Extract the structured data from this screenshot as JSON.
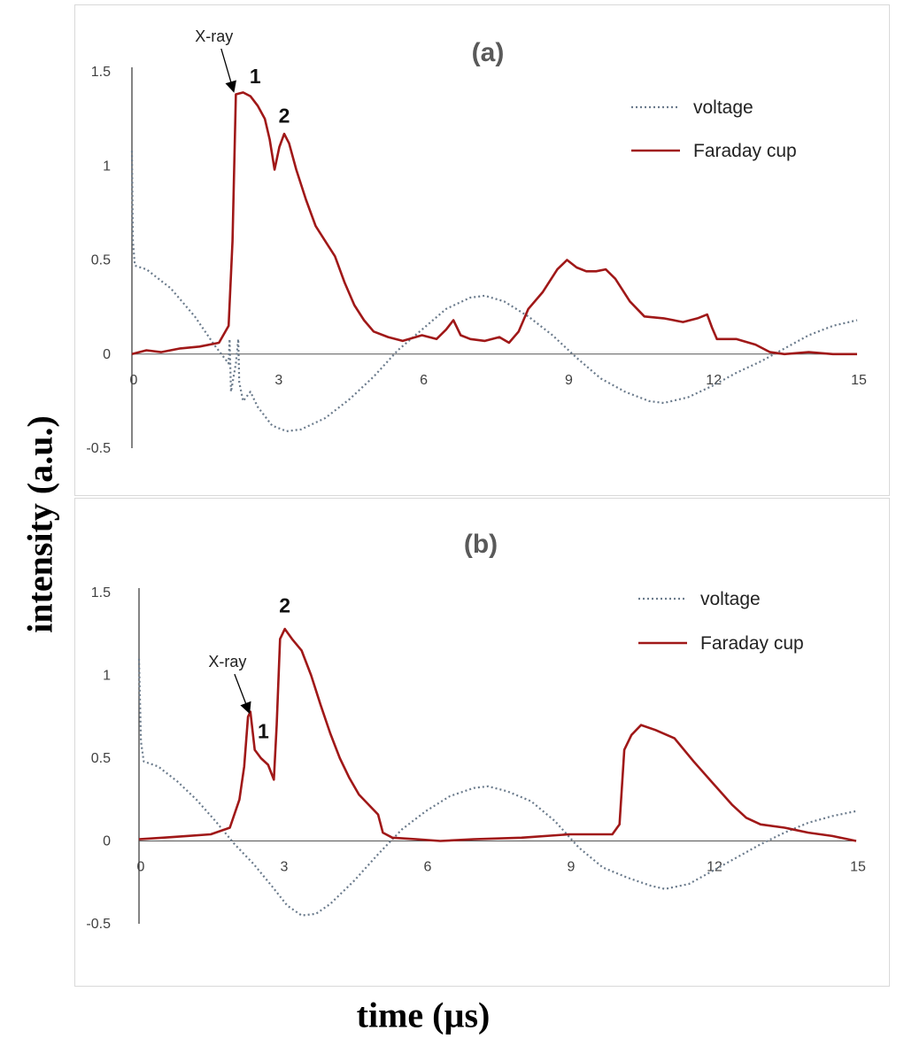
{
  "y_axis_label": "intensity (a.u.)",
  "x_axis_label": "time (µs)",
  "colors": {
    "voltage": "#6b7b8c",
    "faraday": "#a01818",
    "axis": "#333333",
    "text": "#404040",
    "title": "#595959"
  },
  "chart_data": [
    {
      "type": "line",
      "title": "(a)",
      "xlabel": "time (µs)",
      "ylabel": "intensity (a.u.)",
      "xlim": [
        0,
        15
      ],
      "ylim": [
        -0.5,
        1.5
      ],
      "xticks": [
        "0",
        "3",
        "6",
        "9",
        "12",
        "15"
      ],
      "yticks": [
        "-0.5",
        "0",
        "0.5",
        "1",
        "1.5"
      ],
      "legend_position": "top-right",
      "annotations": [
        {
          "text": "X-ray",
          "x": 1.7,
          "y": 1.66,
          "arrow_to": [
            2.1,
            1.4
          ]
        },
        {
          "text": "1",
          "x": 2.55,
          "y": 1.44
        },
        {
          "text": "2",
          "x": 3.15,
          "y": 1.23
        }
      ],
      "series": [
        {
          "name": "voltage",
          "style": "dotted",
          "points": [
            [
              0,
              1.08
            ],
            [
              0.02,
              0.6
            ],
            [
              0.06,
              0.47
            ],
            [
              0.3,
              0.45
            ],
            [
              0.8,
              0.35
            ],
            [
              1.3,
              0.2
            ],
            [
              1.7,
              0.05
            ],
            [
              2.0,
              -0.05
            ],
            [
              2.02,
              0.08
            ],
            [
              2.05,
              -0.2
            ],
            [
              2.15,
              -0.05
            ],
            [
              2.2,
              0.08
            ],
            [
              2.22,
              -0.15
            ],
            [
              2.3,
              -0.25
            ],
            [
              2.45,
              -0.2
            ],
            [
              2.6,
              -0.28
            ],
            [
              2.9,
              -0.38
            ],
            [
              3.2,
              -0.41
            ],
            [
              3.5,
              -0.4
            ],
            [
              4.0,
              -0.34
            ],
            [
              4.5,
              -0.24
            ],
            [
              5.0,
              -0.12
            ],
            [
              5.5,
              0.02
            ],
            [
              6.0,
              0.13
            ],
            [
              6.5,
              0.24
            ],
            [
              7.0,
              0.3
            ],
            [
              7.3,
              0.31
            ],
            [
              7.7,
              0.28
            ],
            [
              8.2,
              0.2
            ],
            [
              8.7,
              0.1
            ],
            [
              9.2,
              -0.02
            ],
            [
              9.7,
              -0.13
            ],
            [
              10.2,
              -0.2
            ],
            [
              10.7,
              -0.25
            ],
            [
              11.0,
              -0.26
            ],
            [
              11.5,
              -0.23
            ],
            [
              12.0,
              -0.17
            ],
            [
              12.5,
              -0.1
            ],
            [
              13.0,
              -0.04
            ],
            [
              13.5,
              0.03
            ],
            [
              14.0,
              0.1
            ],
            [
              14.5,
              0.15
            ],
            [
              15.0,
              0.18
            ]
          ]
        },
        {
          "name": "Faraday cup",
          "style": "solid",
          "points": [
            [
              0,
              0.0
            ],
            [
              0.3,
              0.02
            ],
            [
              0.6,
              0.01
            ],
            [
              1.0,
              0.03
            ],
            [
              1.4,
              0.04
            ],
            [
              1.8,
              0.06
            ],
            [
              2.0,
              0.15
            ],
            [
              2.08,
              0.6
            ],
            [
              2.15,
              1.38
            ],
            [
              2.3,
              1.39
            ],
            [
              2.45,
              1.37
            ],
            [
              2.6,
              1.32
            ],
            [
              2.75,
              1.25
            ],
            [
              2.85,
              1.14
            ],
            [
              2.95,
              0.98
            ],
            [
              3.05,
              1.1
            ],
            [
              3.15,
              1.17
            ],
            [
              3.25,
              1.12
            ],
            [
              3.4,
              0.98
            ],
            [
              3.6,
              0.82
            ],
            [
              3.8,
              0.68
            ],
            [
              4.0,
              0.6
            ],
            [
              4.2,
              0.52
            ],
            [
              4.4,
              0.38
            ],
            [
              4.6,
              0.26
            ],
            [
              4.8,
              0.18
            ],
            [
              5.0,
              0.12
            ],
            [
              5.3,
              0.09
            ],
            [
              5.6,
              0.07
            ],
            [
              6.0,
              0.1
            ],
            [
              6.3,
              0.08
            ],
            [
              6.5,
              0.13
            ],
            [
              6.65,
              0.18
            ],
            [
              6.8,
              0.1
            ],
            [
              7.0,
              0.08
            ],
            [
              7.3,
              0.07
            ],
            [
              7.6,
              0.09
            ],
            [
              7.8,
              0.06
            ],
            [
              8.0,
              0.12
            ],
            [
              8.2,
              0.24
            ],
            [
              8.5,
              0.33
            ],
            [
              8.8,
              0.45
            ],
            [
              9.0,
              0.5
            ],
            [
              9.2,
              0.46
            ],
            [
              9.4,
              0.44
            ],
            [
              9.6,
              0.44
            ],
            [
              9.8,
              0.45
            ],
            [
              10.0,
              0.4
            ],
            [
              10.3,
              0.28
            ],
            [
              10.6,
              0.2
            ],
            [
              11.0,
              0.19
            ],
            [
              11.4,
              0.17
            ],
            [
              11.7,
              0.19
            ],
            [
              11.9,
              0.21
            ],
            [
              12.0,
              0.14
            ],
            [
              12.1,
              0.08
            ],
            [
              12.5,
              0.08
            ],
            [
              12.9,
              0.05
            ],
            [
              13.2,
              0.01
            ],
            [
              13.5,
              0.0
            ],
            [
              14.0,
              0.01
            ],
            [
              14.5,
              0.0
            ],
            [
              15.0,
              0.0
            ]
          ]
        }
      ]
    },
    {
      "type": "line",
      "title": "(b)",
      "xlabel": "time (µs)",
      "ylabel": "intensity (a.u.)",
      "xlim": [
        0,
        15
      ],
      "ylim": [
        -0.5,
        1.5
      ],
      "xticks": [
        "0",
        "3",
        "6",
        "9",
        "12",
        "15"
      ],
      "yticks": [
        "-0.5",
        "0",
        "0.5",
        "1",
        "1.5"
      ],
      "legend_position": "top-right",
      "annotations": [
        {
          "text": "X-ray",
          "x": 1.85,
          "y": 1.05,
          "arrow_to": [
            2.3,
            0.78
          ]
        },
        {
          "text": "1",
          "x": 2.6,
          "y": 0.62
        },
        {
          "text": "2",
          "x": 3.05,
          "y": 1.38
        }
      ],
      "series": [
        {
          "name": "voltage",
          "style": "dotted",
          "points": [
            [
              0,
              1.1
            ],
            [
              0.04,
              0.6
            ],
            [
              0.1,
              0.48
            ],
            [
              0.4,
              0.45
            ],
            [
              0.8,
              0.36
            ],
            [
              1.2,
              0.25
            ],
            [
              1.6,
              0.12
            ],
            [
              2.0,
              -0.02
            ],
            [
              2.4,
              -0.14
            ],
            [
              2.8,
              -0.28
            ],
            [
              3.1,
              -0.39
            ],
            [
              3.4,
              -0.45
            ],
            [
              3.7,
              -0.44
            ],
            [
              4.0,
              -0.38
            ],
            [
              4.5,
              -0.24
            ],
            [
              5.0,
              -0.08
            ],
            [
              5.5,
              0.07
            ],
            [
              6.0,
              0.18
            ],
            [
              6.5,
              0.27
            ],
            [
              7.0,
              0.32
            ],
            [
              7.3,
              0.33
            ],
            [
              7.7,
              0.3
            ],
            [
              8.2,
              0.24
            ],
            [
              8.7,
              0.12
            ],
            [
              9.2,
              -0.04
            ],
            [
              9.7,
              -0.16
            ],
            [
              10.2,
              -0.22
            ],
            [
              10.7,
              -0.27
            ],
            [
              11.0,
              -0.29
            ],
            [
              11.5,
              -0.26
            ],
            [
              12.0,
              -0.18
            ],
            [
              12.5,
              -0.1
            ],
            [
              13.0,
              -0.02
            ],
            [
              13.5,
              0.05
            ],
            [
              14.0,
              0.11
            ],
            [
              14.5,
              0.15
            ],
            [
              15.0,
              0.18
            ]
          ]
        },
        {
          "name": "Faraday cup",
          "style": "solid",
          "points": [
            [
              0,
              0.01
            ],
            [
              0.5,
              0.02
            ],
            [
              1.0,
              0.03
            ],
            [
              1.5,
              0.04
            ],
            [
              1.9,
              0.08
            ],
            [
              2.1,
              0.25
            ],
            [
              2.2,
              0.45
            ],
            [
              2.28,
              0.75
            ],
            [
              2.33,
              0.78
            ],
            [
              2.42,
              0.55
            ],
            [
              2.55,
              0.5
            ],
            [
              2.7,
              0.46
            ],
            [
              2.82,
              0.37
            ],
            [
              2.88,
              0.7
            ],
            [
              2.95,
              1.22
            ],
            [
              3.05,
              1.28
            ],
            [
              3.2,
              1.22
            ],
            [
              3.4,
              1.15
            ],
            [
              3.6,
              1.0
            ],
            [
              3.8,
              0.82
            ],
            [
              4.0,
              0.65
            ],
            [
              4.2,
              0.5
            ],
            [
              4.4,
              0.38
            ],
            [
              4.6,
              0.28
            ],
            [
              4.8,
              0.22
            ],
            [
              5.0,
              0.16
            ],
            [
              5.1,
              0.05
            ],
            [
              5.3,
              0.02
            ],
            [
              5.8,
              0.01
            ],
            [
              6.3,
              0.0
            ],
            [
              7.0,
              0.01
            ],
            [
              8.0,
              0.02
            ],
            [
              9.0,
              0.04
            ],
            [
              9.5,
              0.04
            ],
            [
              9.9,
              0.04
            ],
            [
              10.05,
              0.1
            ],
            [
              10.15,
              0.55
            ],
            [
              10.3,
              0.64
            ],
            [
              10.5,
              0.7
            ],
            [
              10.8,
              0.67
            ],
            [
              11.2,
              0.62
            ],
            [
              11.6,
              0.48
            ],
            [
              12.0,
              0.35
            ],
            [
              12.4,
              0.22
            ],
            [
              12.7,
              0.14
            ],
            [
              13.0,
              0.1
            ],
            [
              13.5,
              0.08
            ],
            [
              14.0,
              0.05
            ],
            [
              14.5,
              0.03
            ],
            [
              15.0,
              0.0
            ]
          ]
        }
      ]
    }
  ]
}
